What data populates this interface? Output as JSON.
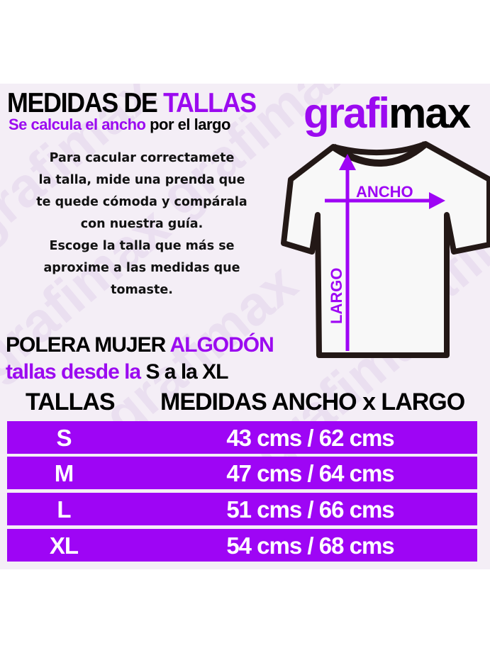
{
  "header": {
    "title_black": "MEDIDAS DE",
    "title_purple": "TALLAS",
    "subtitle_purple": "Se calcula el ancho",
    "subtitle_black": "por el largo",
    "logo_purple": "grafi",
    "logo_black": "max",
    "watermark": "grafimax"
  },
  "instructions": [
    "Para cacular correctamete",
    "la talla, mide una prenda que",
    "te quede cómoda y compárala",
    "con nuestra guía.",
    "Escoge la talla que más se",
    "aproxime a las medidas que",
    "tomaste."
  ],
  "diagram": {
    "width_label": "ANCHO",
    "length_label": "LARGO"
  },
  "product": {
    "name_black": "POLERA MUJER",
    "name_purple": "ALGODÓN",
    "range_purple": "tallas desde la",
    "range_black": "S a la XL"
  },
  "table": {
    "headers": [
      "TALLAS",
      "MEDIDAS ANCHO x LARGO"
    ],
    "rows": [
      {
        "size": "S",
        "measure": "43 cms / 62 cms"
      },
      {
        "size": "M",
        "measure": "47 cms / 64 cms"
      },
      {
        "size": "L",
        "measure": "51 cms / 66 cms"
      },
      {
        "size": "XL",
        "measure": "54 cms / 68 cms"
      }
    ]
  },
  "colors": {
    "accent": "#9e05f5",
    "text": "#000000"
  }
}
